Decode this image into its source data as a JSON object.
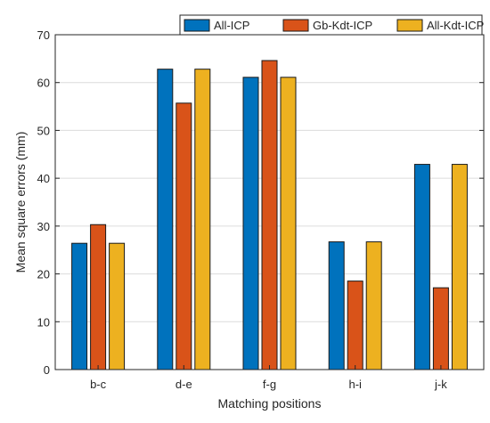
{
  "chart_data": {
    "type": "bar",
    "title": "",
    "xlabel": "Matching positions",
    "ylabel": "Mean square errors (mm)",
    "categories": [
      "b-c",
      "d-e",
      "f-g",
      "h-i",
      "j-k"
    ],
    "ylim": [
      0,
      70
    ],
    "yticks": [
      0,
      10,
      20,
      30,
      40,
      50,
      60,
      70
    ],
    "grid": true,
    "legend_position": "top-right",
    "series": [
      {
        "name": "All-ICP",
        "color": "#0072BD",
        "values": [
          26.4,
          62.8,
          61.1,
          26.7,
          42.9
        ]
      },
      {
        "name": "Gb-Kdt-ICP",
        "color": "#D95319",
        "values": [
          30.3,
          55.7,
          64.6,
          18.5,
          17.1
        ]
      },
      {
        "name": "All-Kdt-ICP",
        "color": "#EDB120",
        "values": [
          26.4,
          62.8,
          61.1,
          26.7,
          42.9
        ]
      }
    ]
  }
}
